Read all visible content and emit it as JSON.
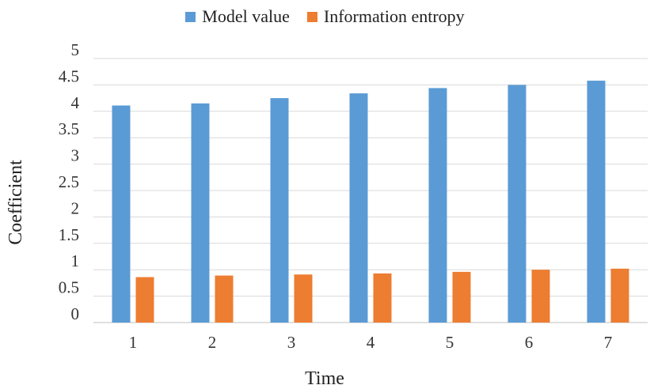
{
  "chart_data": {
    "type": "bar",
    "categories": [
      "1",
      "2",
      "3",
      "4",
      "5",
      "6",
      "7"
    ],
    "series": [
      {
        "name": "Model value",
        "color": "#5b9bd5",
        "values": [
          4.11,
          4.15,
          4.25,
          4.34,
          4.44,
          4.5,
          4.58
        ]
      },
      {
        "name": "Information entropy",
        "color": "#ed7d31",
        "values": [
          0.86,
          0.89,
          0.91,
          0.93,
          0.96,
          1.0,
          1.02
        ]
      }
    ],
    "yticks": [
      "0",
      "0.5",
      "1",
      "1.5",
      "2",
      "2.5",
      "3",
      "3.5",
      "4",
      "4.5",
      "5"
    ],
    "ylim": [
      0,
      5
    ],
    "xlabel": "Time",
    "ylabel": "Coefficient",
    "grid": true,
    "legend": "top-center"
  }
}
